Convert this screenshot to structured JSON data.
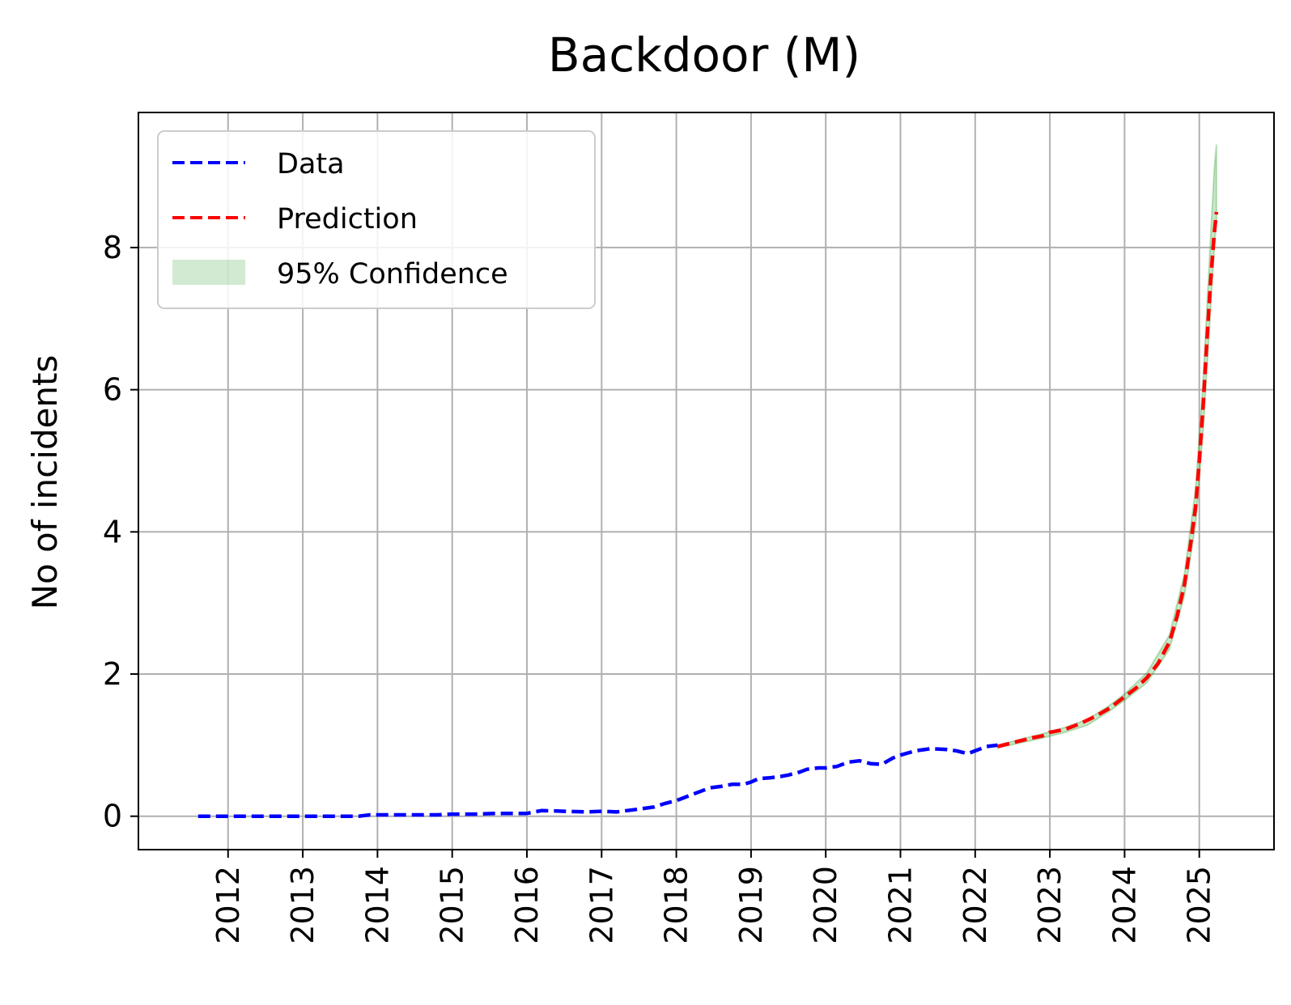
{
  "chart_data": {
    "type": "line",
    "title": "Backdoor (M)",
    "xlabel": "",
    "ylabel": "No of incidents",
    "x_tick_labels": [
      "2012",
      "2013",
      "2014",
      "2015",
      "2016",
      "2017",
      "2018",
      "2019",
      "2020",
      "2021",
      "2022",
      "2023",
      "2024",
      "2025"
    ],
    "y_tick_labels": [
      "0",
      "2",
      "4",
      "6",
      "8"
    ],
    "xlim": [
      2010.8,
      2026.0
    ],
    "ylim": [
      -0.47,
      9.9
    ],
    "grid": true,
    "legend_position": "upper-left",
    "series": [
      {
        "name": "Data",
        "style": "dashed",
        "color": "#0000ff",
        "x": [
          2011.6,
          2012.0,
          2012.5,
          2013.0,
          2013.5,
          2013.75,
          2013.9,
          2014.2,
          2014.5,
          2014.8,
          2015.0,
          2015.3,
          2015.6,
          2015.8,
          2016.0,
          2016.2,
          2016.5,
          2016.8,
          2017.0,
          2017.2,
          2017.5,
          2017.7,
          2017.85,
          2018.0,
          2018.15,
          2018.3,
          2018.45,
          2018.6,
          2018.75,
          2018.9,
          2019.0,
          2019.1,
          2019.25,
          2019.4,
          2019.5,
          2019.65,
          2019.75,
          2019.9,
          2020.0,
          2020.15,
          2020.3,
          2020.45,
          2020.6,
          2020.75,
          2020.9,
          2021.0,
          2021.2,
          2021.4,
          2021.6,
          2021.75,
          2021.9,
          2022.0,
          2022.15,
          2022.3
        ],
        "values": [
          0.0,
          0.0,
          0.0,
          0.0,
          0.0,
          0.0,
          0.02,
          0.02,
          0.02,
          0.02,
          0.03,
          0.03,
          0.04,
          0.04,
          0.04,
          0.08,
          0.07,
          0.06,
          0.07,
          0.06,
          0.1,
          0.13,
          0.18,
          0.22,
          0.28,
          0.34,
          0.4,
          0.42,
          0.45,
          0.45,
          0.48,
          0.53,
          0.54,
          0.56,
          0.58,
          0.62,
          0.66,
          0.68,
          0.68,
          0.7,
          0.76,
          0.78,
          0.74,
          0.73,
          0.82,
          0.86,
          0.92,
          0.95,
          0.94,
          0.92,
          0.88,
          0.92,
          0.98,
          1.0
        ]
      },
      {
        "name": "Prediction",
        "style": "dashed",
        "color": "#ff0000",
        "x": [
          2022.3,
          2022.45,
          2022.6,
          2022.75,
          2022.9,
          2023.0,
          2023.2,
          2023.4,
          2023.6,
          2023.8,
          2024.0,
          2024.15,
          2024.3,
          2024.45,
          2024.6,
          2024.7,
          2024.8,
          2024.88,
          2024.95,
          2025.0,
          2025.05,
          2025.1,
          2025.15,
          2025.2,
          2025.23
        ],
        "values": [
          0.98,
          1.02,
          1.06,
          1.1,
          1.13,
          1.18,
          1.22,
          1.3,
          1.4,
          1.52,
          1.68,
          1.8,
          1.95,
          2.15,
          2.45,
          2.8,
          3.25,
          3.8,
          4.35,
          5.0,
          5.75,
          6.65,
          7.5,
          8.2,
          8.5
        ]
      }
    ],
    "confidence_band": {
      "name": "95% Confidence",
      "color": "#2ca02c",
      "x": [
        2022.3,
        2022.6,
        2022.9,
        2023.2,
        2023.5,
        2023.8,
        2024.0,
        2024.3,
        2024.6,
        2024.8,
        2024.95,
        2025.05,
        2025.15,
        2025.2,
        2025.23
      ],
      "lower": [
        0.96,
        1.03,
        1.1,
        1.18,
        1.28,
        1.48,
        1.63,
        1.88,
        2.35,
        3.1,
        4.1,
        5.4,
        7.1,
        8.0,
        8.4
      ],
      "upper": [
        1.0,
        1.08,
        1.16,
        1.25,
        1.36,
        1.56,
        1.72,
        2.02,
        2.55,
        3.4,
        4.6,
        6.1,
        8.1,
        9.1,
        9.45
      ]
    }
  },
  "legend": {
    "items": [
      {
        "label": "Data",
        "color": "#0000ff"
      },
      {
        "label": "Prediction",
        "color": "#ff0000"
      },
      {
        "label": "95% Confidence",
        "color": "#2ca02c"
      }
    ]
  }
}
